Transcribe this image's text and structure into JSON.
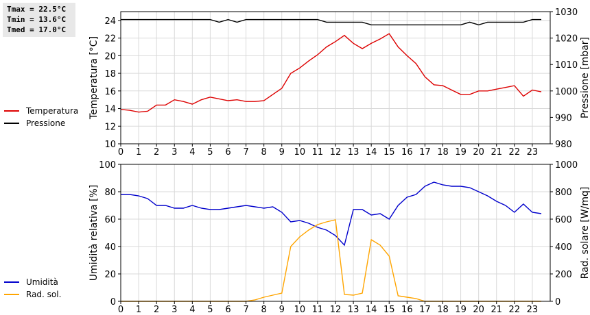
{
  "stats": {
    "tmax": "Tmax = 22.5°C",
    "tmin": "Tmin = 13.6°C",
    "tmed": "Tmed = 17.0°C"
  },
  "chart_data": [
    {
      "type": "line",
      "ylabel": "Temperatura [°C]",
      "y2label": "Pressione [mbar]",
      "xlim": [
        0,
        24
      ],
      "ylim": [
        10,
        25
      ],
      "y2lim": [
        980,
        1030
      ],
      "yticks": [
        10,
        12,
        14,
        16,
        18,
        20,
        22,
        24
      ],
      "y2ticks": [
        980,
        990,
        1000,
        1010,
        1020,
        1030
      ],
      "xticks": [
        0,
        1,
        2,
        3,
        4,
        5,
        6,
        7,
        8,
        9,
        10,
        11,
        12,
        13,
        14,
        15,
        16,
        17,
        18,
        19,
        20,
        21,
        22,
        23
      ],
      "grid": true,
      "legend_position": "left",
      "series": [
        {
          "name": "Temperatura",
          "color": "#dd0000",
          "axis": "left",
          "x": [
            0,
            0.5,
            1,
            1.5,
            2,
            2.5,
            3,
            3.5,
            4,
            4.5,
            5,
            5.5,
            6,
            6.5,
            7,
            7.5,
            8,
            8.5,
            9,
            9.5,
            10,
            10.5,
            11,
            11.5,
            12,
            12.5,
            13,
            13.5,
            14,
            14.5,
            15,
            15.5,
            16,
            16.5,
            17,
            17.5,
            18,
            18.5,
            19,
            19.5,
            20,
            20.5,
            21,
            21.5,
            22,
            22.5,
            23,
            23.5
          ],
          "values": [
            13.9,
            13.8,
            13.6,
            13.7,
            14.4,
            14.4,
            15.0,
            14.8,
            14.5,
            15.0,
            15.3,
            15.1,
            14.9,
            15.0,
            14.8,
            14.8,
            14.9,
            15.6,
            16.3,
            18.0,
            18.6,
            19.4,
            20.1,
            21.0,
            21.6,
            22.3,
            21.4,
            20.8,
            21.4,
            21.9,
            22.5,
            21.0,
            20.0,
            19.1,
            17.6,
            16.7,
            16.6,
            16.1,
            15.6,
            15.6,
            16.0,
            16.0,
            16.2,
            16.4,
            16.6,
            15.4,
            16.1,
            15.9
          ]
        },
        {
          "name": "Pressione",
          "color": "#000000",
          "axis": "right",
          "x": [
            0,
            0.5,
            1,
            1.5,
            2,
            2.5,
            3,
            3.5,
            4,
            4.5,
            5,
            5.5,
            6,
            6.5,
            7,
            7.5,
            8,
            8.5,
            9,
            9.5,
            10,
            10.5,
            11,
            11.5,
            12,
            12.5,
            13,
            13.5,
            14,
            14.5,
            15,
            15.5,
            16,
            16.5,
            17,
            17.5,
            18,
            18.5,
            19,
            19.5,
            20,
            20.5,
            21,
            21.5,
            22,
            22.5,
            23,
            23.5
          ],
          "values": [
            1027,
            1027,
            1027,
            1027,
            1027,
            1027,
            1027,
            1027,
            1027,
            1027,
            1027,
            1026,
            1027,
            1026,
            1027,
            1027,
            1027,
            1027,
            1027,
            1027,
            1027,
            1027,
            1027,
            1026,
            1026,
            1026,
            1026,
            1026,
            1025,
            1025,
            1025,
            1025,
            1025,
            1025,
            1025,
            1025,
            1025,
            1025,
            1025,
            1026,
            1025,
            1026,
            1026,
            1026,
            1026,
            1026,
            1027,
            1027
          ]
        }
      ]
    },
    {
      "type": "line",
      "ylabel": "Umidità relativa [%]",
      "y2label": "Rad. solare [W/mq]",
      "xlim": [
        0,
        24
      ],
      "ylim": [
        0,
        100
      ],
      "y2lim": [
        0,
        1000
      ],
      "yticks": [
        0,
        20,
        40,
        60,
        80,
        100
      ],
      "y2ticks": [
        0,
        200,
        400,
        600,
        800,
        1000
      ],
      "xticks": [
        0,
        1,
        2,
        3,
        4,
        5,
        6,
        7,
        8,
        9,
        10,
        11,
        12,
        13,
        14,
        15,
        16,
        17,
        18,
        19,
        20,
        21,
        22,
        23
      ],
      "grid": true,
      "legend_position": "left",
      "series": [
        {
          "name": "Umidità",
          "color": "#0000cc",
          "axis": "left",
          "x": [
            0,
            0.5,
            1,
            1.5,
            2,
            2.5,
            3,
            3.5,
            4,
            4.5,
            5,
            5.5,
            6,
            6.5,
            7,
            7.5,
            8,
            8.5,
            9,
            9.5,
            10,
            10.5,
            11,
            11.5,
            12,
            12.5,
            13,
            13.5,
            14,
            14.5,
            15,
            15.5,
            16,
            16.5,
            17,
            17.5,
            18,
            18.5,
            19,
            19.5,
            20,
            20.5,
            21,
            21.5,
            22,
            22.5,
            23,
            23.5
          ],
          "values": [
            78,
            78,
            77,
            75,
            70,
            70,
            68,
            68,
            70,
            68,
            67,
            67,
            68,
            69,
            70,
            69,
            68,
            69,
            65,
            58,
            59,
            57,
            54,
            52,
            48,
            41,
            67,
            67,
            63,
            64,
            60,
            70,
            76,
            78,
            84,
            87,
            85,
            84,
            84,
            83,
            80,
            77,
            73,
            70,
            65,
            71,
            65,
            64
          ]
        },
        {
          "name": "Rad. sol.",
          "color": "#ffa500",
          "axis": "right",
          "x": [
            0,
            0.5,
            1,
            1.5,
            2,
            2.5,
            3,
            3.5,
            4,
            4.5,
            5,
            5.5,
            6,
            6.5,
            7,
            7.5,
            8,
            8.5,
            9,
            9.5,
            10,
            10.5,
            11,
            11.5,
            12,
            12.5,
            13,
            13.5,
            14,
            14.5,
            15,
            15.5,
            16,
            16.5,
            17,
            17.5,
            18,
            18.5,
            19,
            19.5,
            20,
            20.5,
            21,
            21.5,
            22,
            22.5,
            23,
            23.5
          ],
          "values": [
            0,
            0,
            0,
            0,
            0,
            0,
            0,
            0,
            0,
            0,
            0,
            0,
            0,
            0,
            0,
            10,
            30,
            45,
            60,
            400,
            470,
            520,
            560,
            580,
            595,
            50,
            45,
            60,
            450,
            410,
            330,
            40,
            30,
            20,
            0,
            0,
            0,
            0,
            0,
            0,
            0,
            0,
            0,
            0,
            0,
            0,
            0,
            0
          ]
        }
      ]
    }
  ]
}
